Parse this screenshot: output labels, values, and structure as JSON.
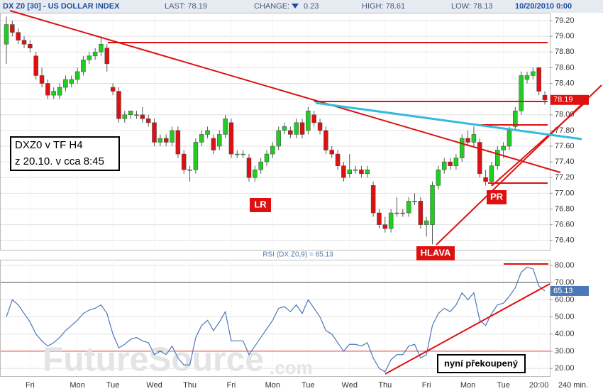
{
  "header": {
    "symbol": "DX Z0 [30] - US DOLLAR INDEX",
    "last": "LAST: 78.19",
    "change_label": "CHANGE:",
    "change": "0.23",
    "high": "HIGH: 78.61",
    "low": "LOW: 78.13",
    "datetime": "10/20/2010 0:00"
  },
  "annotations": [
    "DXZ0 v TF H4",
    "z 20.10. v cca 8:45",
    "LR",
    "PR",
    "HLAVA",
    "nyní překoupený"
  ],
  "watermark": [
    "FutureSource",
    ".com"
  ],
  "chart_data": [
    {
      "type": "candlestick",
      "up_color": "#22cc22",
      "down_color": "#dd1111",
      "interval_label": "240 min.",
      "grid": true,
      "categories": [
        null,
        null,
        null,
        null,
        "Fri",
        null,
        null,
        null,
        null,
        null,
        null,
        null,
        "Mon",
        null,
        null,
        null,
        null,
        null,
        "Tue",
        null,
        null,
        null,
        null,
        null,
        null,
        "Wed",
        null,
        null,
        null,
        null,
        null,
        "Thu",
        null,
        null,
        null,
        null,
        null,
        null,
        "Fri",
        null,
        null,
        null,
        null,
        null,
        null,
        "Mon",
        null,
        null,
        null,
        null,
        null,
        "Tue",
        null,
        null,
        null,
        null,
        null,
        null,
        "Wed",
        null,
        null,
        null,
        null,
        null,
        "Thu",
        null,
        null,
        null,
        null,
        null,
        null,
        "Fri",
        null,
        null,
        null,
        null,
        null,
        null,
        "Mon",
        null,
        null,
        null,
        null,
        null,
        "Tue",
        null,
        null,
        null,
        null,
        null,
        "20:00",
        null
      ],
      "candles": [
        [
          78.9,
          79.25,
          78.65,
          79.15
        ],
        [
          79.15,
          79.2,
          79.0,
          79.05
        ],
        [
          79.05,
          79.1,
          78.9,
          78.95
        ],
        [
          78.95,
          79.0,
          78.85,
          78.9
        ],
        [
          78.9,
          78.95,
          78.8,
          78.85
        ],
        [
          78.75,
          78.8,
          78.45,
          78.5
        ],
        [
          78.5,
          78.6,
          78.35,
          78.4
        ],
        [
          78.4,
          78.45,
          78.2,
          78.25
        ],
        [
          78.25,
          78.35,
          78.2,
          78.3
        ],
        [
          78.25,
          78.4,
          78.2,
          78.35
        ],
        [
          78.35,
          78.5,
          78.3,
          78.45
        ],
        [
          78.4,
          78.5,
          78.35,
          78.45
        ],
        [
          78.45,
          78.6,
          78.4,
          78.55
        ],
        [
          78.55,
          78.75,
          78.5,
          78.7
        ],
        [
          78.7,
          78.8,
          78.65,
          78.75
        ],
        [
          78.75,
          78.85,
          78.7,
          78.8
        ],
        [
          78.8,
          79.0,
          78.75,
          78.9
        ],
        [
          78.85,
          78.9,
          78.55,
          78.65
        ],
        [
          78.35,
          78.4,
          78.25,
          78.3
        ],
        [
          78.3,
          78.35,
          77.9,
          77.95
        ],
        [
          77.95,
          78.05,
          77.9,
          78.0
        ],
        [
          78.0,
          78.05,
          77.95,
          78.05
        ],
        [
          78.0,
          78.05,
          77.95,
          78.0
        ],
        [
          78.0,
          78.1,
          77.9,
          77.95
        ],
        [
          77.95,
          78.0,
          77.85,
          77.9
        ],
        [
          77.9,
          77.95,
          77.6,
          77.65
        ],
        [
          77.65,
          77.75,
          77.6,
          77.7
        ],
        [
          77.7,
          77.75,
          77.6,
          77.65
        ],
        [
          77.65,
          77.85,
          77.6,
          77.8
        ],
        [
          77.8,
          77.85,
          77.45,
          77.5
        ],
        [
          77.5,
          77.55,
          77.25,
          77.3
        ],
        [
          77.3,
          77.35,
          77.15,
          77.3
        ],
        [
          77.3,
          77.7,
          77.25,
          77.65
        ],
        [
          77.65,
          77.8,
          77.6,
          77.75
        ],
        [
          77.75,
          77.85,
          77.7,
          77.8
        ],
        [
          77.7,
          77.75,
          77.5,
          77.55
        ],
        [
          77.6,
          77.8,
          77.55,
          77.75
        ],
        [
          77.75,
          78.0,
          77.7,
          77.95
        ],
        [
          77.9,
          77.95,
          77.45,
          77.5
        ],
        [
          77.5,
          77.55,
          77.45,
          77.5
        ],
        [
          77.5,
          77.55,
          77.45,
          77.5
        ],
        [
          77.45,
          77.5,
          77.15,
          77.2
        ],
        [
          77.2,
          77.35,
          77.15,
          77.3
        ],
        [
          77.3,
          77.45,
          77.25,
          77.4
        ],
        [
          77.4,
          77.55,
          77.35,
          77.5
        ],
        [
          77.5,
          77.65,
          77.45,
          77.6
        ],
        [
          77.6,
          77.85,
          77.55,
          77.8
        ],
        [
          77.8,
          77.9,
          77.75,
          77.85
        ],
        [
          77.8,
          77.85,
          77.7,
          77.75
        ],
        [
          77.75,
          77.95,
          77.7,
          77.9
        ],
        [
          77.9,
          77.95,
          77.7,
          77.75
        ],
        [
          77.8,
          78.1,
          77.75,
          78.05
        ],
        [
          78.0,
          78.05,
          77.85,
          77.9
        ],
        [
          77.9,
          77.95,
          77.75,
          77.8
        ],
        [
          77.8,
          77.85,
          77.5,
          77.55
        ],
        [
          77.55,
          77.6,
          77.45,
          77.5
        ],
        [
          77.5,
          77.55,
          77.3,
          77.35
        ],
        [
          77.35,
          77.4,
          77.15,
          77.2
        ],
        [
          77.25,
          77.5,
          77.2,
          77.3
        ],
        [
          77.3,
          77.35,
          77.25,
          77.3
        ],
        [
          77.3,
          77.35,
          77.2,
          77.25
        ],
        [
          77.25,
          77.35,
          77.2,
          77.3
        ],
        [
          77.1,
          77.15,
          76.7,
          76.75
        ],
        [
          76.75,
          76.8,
          76.55,
          76.6
        ],
        [
          76.6,
          76.7,
          76.5,
          76.55
        ],
        [
          76.55,
          76.8,
          76.5,
          76.75
        ],
        [
          76.75,
          76.95,
          76.7,
          76.75
        ],
        [
          76.75,
          76.8,
          76.7,
          76.75
        ],
        [
          76.75,
          76.95,
          76.7,
          76.9
        ],
        [
          76.9,
          77.0,
          76.85,
          76.9
        ],
        [
          76.9,
          76.95,
          76.55,
          76.6
        ],
        [
          76.6,
          76.7,
          76.45,
          76.65
        ],
        [
          76.6,
          77.15,
          76.35,
          77.1
        ],
        [
          77.1,
          77.35,
          77.05,
          77.3
        ],
        [
          77.3,
          77.45,
          77.25,
          77.4
        ],
        [
          77.4,
          77.45,
          77.3,
          77.35
        ],
        [
          77.35,
          77.5,
          77.3,
          77.45
        ],
        [
          77.45,
          77.75,
          77.4,
          77.7
        ],
        [
          77.7,
          77.8,
          77.6,
          77.65
        ],
        [
          77.65,
          77.85,
          77.6,
          77.75
        ],
        [
          77.65,
          77.7,
          77.2,
          77.25
        ],
        [
          77.2,
          77.3,
          77.1,
          77.15
        ],
        [
          77.15,
          77.4,
          77.1,
          77.35
        ],
        [
          77.35,
          77.6,
          77.3,
          77.55
        ],
        [
          77.55,
          77.65,
          77.45,
          77.6
        ],
        [
          77.6,
          77.85,
          77.55,
          77.8
        ],
        [
          77.85,
          78.1,
          77.8,
          78.05
        ],
        [
          78.05,
          78.55,
          78.0,
          78.5
        ],
        [
          78.45,
          78.55,
          78.4,
          78.5
        ],
        [
          78.5,
          78.6,
          78.45,
          78.55
        ],
        [
          78.6,
          78.61,
          78.25,
          78.3
        ],
        [
          78.25,
          78.3,
          78.13,
          78.19
        ]
      ],
      "ylim": [
        76.28,
        79.3
      ],
      "yticks": [
        {
          "value": 76.4,
          "label": "76.40"
        },
        {
          "value": 76.6,
          "label": "76.60"
        },
        {
          "value": 76.8,
          "label": "76.80"
        },
        {
          "value": 77.0,
          "label": "77.00"
        },
        {
          "value": 77.2,
          "label": "77.20"
        },
        {
          "value": 77.4,
          "label": "77.40"
        },
        {
          "value": 77.6,
          "label": "77.60"
        },
        {
          "value": 77.8,
          "label": "77.80"
        },
        {
          "value": 78.0,
          "label": "78.00"
        },
        {
          "value": 78.2,
          "label": "78.20"
        },
        {
          "value": 78.4,
          "label": "78.40"
        },
        {
          "value": 78.6,
          "label": "78.60"
        },
        {
          "value": 78.8,
          "label": "78.80"
        },
        {
          "value": 79.0,
          "label": "79.00"
        },
        {
          "value": 79.2,
          "label": "79.20"
        }
      ]
    },
    {
      "type": "line",
      "title": "RSI (DX Z0,9) = 65.13",
      "color": "#4a78b8",
      "grid": true,
      "values": [
        50,
        60,
        57,
        52,
        47,
        40,
        36,
        33,
        35,
        38,
        42,
        45,
        48,
        52,
        54,
        55,
        57,
        52,
        40,
        32,
        34,
        37,
        38,
        36,
        35,
        28,
        30,
        28,
        33,
        26,
        22,
        22,
        38,
        45,
        48,
        42,
        47,
        53,
        36,
        36,
        36,
        28,
        33,
        38,
        43,
        48,
        55,
        56,
        53,
        57,
        52,
        60,
        55,
        50,
        42,
        40,
        35,
        30,
        34,
        34,
        33,
        35,
        26,
        20,
        18,
        25,
        28,
        28,
        33,
        34,
        26,
        28,
        45,
        52,
        55,
        53,
        57,
        64,
        60,
        64,
        48,
        45,
        52,
        57,
        58,
        62,
        67,
        76,
        79,
        78,
        68,
        65.13
      ],
      "ylim": [
        15.5,
        83.3
      ],
      "yticks": [
        {
          "value": 20,
          "label": "20.00"
        },
        {
          "value": 30,
          "label": "30.00"
        },
        {
          "value": 40,
          "label": "40.00"
        },
        {
          "value": 50,
          "label": "50.00"
        },
        {
          "value": 60,
          "label": "60.00"
        },
        {
          "value": 70,
          "label": "70.00"
        },
        {
          "value": 80,
          "label": "80.00"
        }
      ]
    }
  ]
}
